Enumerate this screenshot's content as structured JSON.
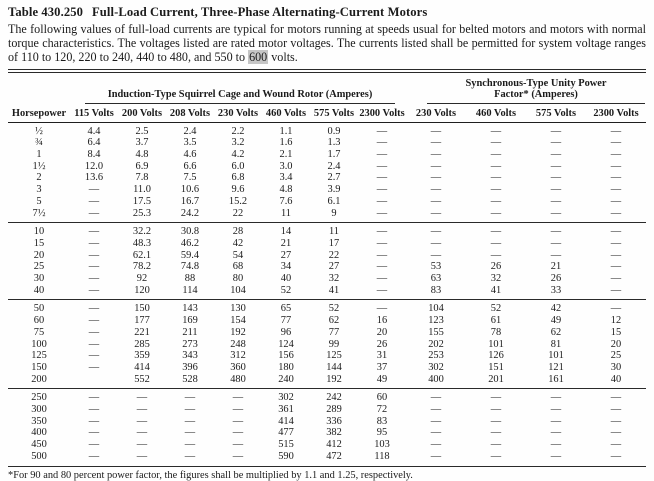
{
  "title": {
    "number": "Table 430.250",
    "text": "Full-Load Current, Three-Phase Alternating-Current Motors"
  },
  "intro": {
    "before_highlight": "The following values of full-load currents are typical for motors running at speeds usual for belted motors and motors with normal torque characteristics. The voltages listed are rated motor voltages. The currents listed shall be permitted for system voltage ranges of 110 to 120, 220 to 240, 440 to 480, and 550 to ",
    "highlight": "600",
    "after_highlight": " volts."
  },
  "table": {
    "corner_label": "Horsepower",
    "groups": [
      {
        "label_lines": [
          "Induction-Type Squirrel Cage and Wound Rotor (Amperes)"
        ],
        "columns": [
          "115 Volts",
          "200 Volts",
          "208 Volts",
          "230 Volts",
          "460 Volts",
          "575 Volts",
          "2300 Volts"
        ]
      },
      {
        "label_lines": [
          "Synchronous-Type Unity Power",
          "Factor* (Amperes)"
        ],
        "columns": [
          "230 Volts",
          "460 Volts",
          "575 Volts",
          "2300 Volts"
        ]
      }
    ],
    "blocks": [
      {
        "rows": [
          [
            "½",
            "4.4",
            "2.5",
            "2.4",
            "2.2",
            "1.1",
            "0.9",
            "—",
            "—",
            "—",
            "—",
            "—"
          ],
          [
            "¾",
            "6.4",
            "3.7",
            "3.5",
            "3.2",
            "1.6",
            "1.3",
            "—",
            "—",
            "—",
            "—",
            "—"
          ],
          [
            "1",
            "8.4",
            "4.8",
            "4.6",
            "4.2",
            "2.1",
            "1.7",
            "—",
            "—",
            "—",
            "—",
            "—"
          ],
          [
            "1½",
            "12.0",
            "6.9",
            "6.6",
            "6.0",
            "3.0",
            "2.4",
            "—",
            "—",
            "—",
            "—",
            "—"
          ],
          [
            "2",
            "13.6",
            "7.8",
            "7.5",
            "6.8",
            "3.4",
            "2.7",
            "—",
            "—",
            "—",
            "—",
            "—"
          ],
          [
            "3",
            "—",
            "11.0",
            "10.6",
            "9.6",
            "4.8",
            "3.9",
            "—",
            "—",
            "—",
            "—",
            "—"
          ],
          [
            "5",
            "—",
            "17.5",
            "16.7",
            "15.2",
            "7.6",
            "6.1",
            "—",
            "—",
            "—",
            "—",
            "—"
          ],
          [
            "7½",
            "—",
            "25.3",
            "24.2",
            "22",
            "11",
            "9",
            "—",
            "—",
            "—",
            "—",
            "—"
          ]
        ]
      },
      {
        "rows": [
          [
            "10",
            "—",
            "32.2",
            "30.8",
            "28",
            "14",
            "11",
            "—",
            "—",
            "—",
            "—",
            "—"
          ],
          [
            "15",
            "—",
            "48.3",
            "46.2",
            "42",
            "21",
            "17",
            "—",
            "—",
            "—",
            "—",
            "—"
          ],
          [
            "20",
            "—",
            "62.1",
            "59.4",
            "54",
            "27",
            "22",
            "—",
            "—",
            "—",
            "—",
            "—"
          ],
          [
            "25",
            "—",
            "78.2",
            "74.8",
            "68",
            "34",
            "27",
            "—",
            "53",
            "26",
            "21",
            "—"
          ],
          [
            "30",
            "—",
            "92",
            "88",
            "80",
            "40",
            "32",
            "—",
            "63",
            "32",
            "26",
            "—"
          ],
          [
            "40",
            "—",
            "120",
            "114",
            "104",
            "52",
            "41",
            "—",
            "83",
            "41",
            "33",
            "—"
          ]
        ]
      },
      {
        "rows": [
          [
            "50",
            "—",
            "150",
            "143",
            "130",
            "65",
            "52",
            "—",
            "104",
            "52",
            "42",
            "—"
          ],
          [
            "60",
            "—",
            "177",
            "169",
            "154",
            "77",
            "62",
            "16",
            "123",
            "61",
            "49",
            "12"
          ],
          [
            "75",
            "—",
            "221",
            "211",
            "192",
            "96",
            "77",
            "20",
            "155",
            "78",
            "62",
            "15"
          ],
          [
            "100",
            "—",
            "285",
            "273",
            "248",
            "124",
            "99",
            "26",
            "202",
            "101",
            "81",
            "20"
          ],
          [
            "125",
            "—",
            "359",
            "343",
            "312",
            "156",
            "125",
            "31",
            "253",
            "126",
            "101",
            "25"
          ],
          [
            "150",
            "—",
            "414",
            "396",
            "360",
            "180",
            "144",
            "37",
            "302",
            "151",
            "121",
            "30"
          ],
          [
            "200",
            "",
            "552",
            "528",
            "480",
            "240",
            "192",
            "49",
            "400",
            "201",
            "161",
            "40"
          ]
        ]
      },
      {
        "rows": [
          [
            "250",
            "—",
            "—",
            "—",
            "—",
            "302",
            "242",
            "60",
            "—",
            "—",
            "—",
            "—"
          ],
          [
            "300",
            "—",
            "—",
            "—",
            "—",
            "361",
            "289",
            "72",
            "—",
            "—",
            "—",
            "—"
          ],
          [
            "350",
            "—",
            "—",
            "—",
            "—",
            "414",
            "336",
            "83",
            "—",
            "—",
            "—",
            "—"
          ],
          [
            "400",
            "—",
            "—",
            "—",
            "—",
            "477",
            "382",
            "95",
            "—",
            "—",
            "—",
            "—"
          ],
          [
            "450",
            "—",
            "—",
            "—",
            "—",
            "515",
            "412",
            "103",
            "—",
            "—",
            "—",
            "—"
          ],
          [
            "500",
            "—",
            "—",
            "—",
            "—",
            "590",
            "472",
            "118",
            "—",
            "—",
            "—",
            "—"
          ]
        ]
      }
    ]
  },
  "footnote": "*For 90 and 80 percent power factor, the figures shall be multiplied by 1.1 and 1.25, respectively.",
  "colors": {
    "text": "#1b1b1b",
    "rule": "#2a2a2a",
    "highlight": "#c6c6c6"
  }
}
